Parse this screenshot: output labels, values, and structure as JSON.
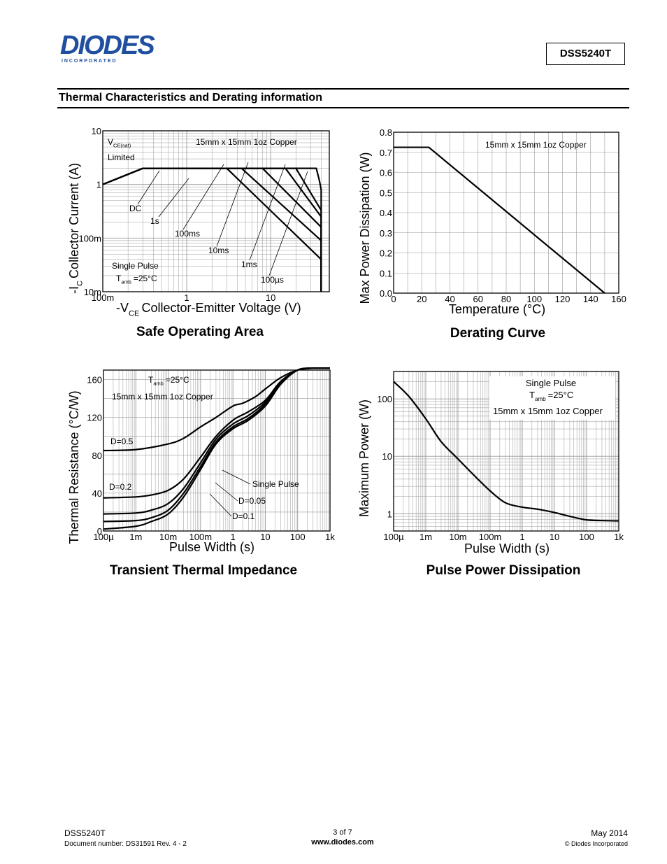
{
  "header": {
    "logo_text": "DIODES",
    "logo_sub": "I N C O R P O R A T E D",
    "part_number": "DSS5240T",
    "section_title": "Thermal Characteristics and Derating information"
  },
  "footer": {
    "part": "DSS5240T",
    "doc_number": "Document number: DS31591 Rev. 4 - 2",
    "page": "3 of 7",
    "website": "www.diodes.com",
    "date": "May 2014",
    "copyright": "© Diodes Incorporated"
  },
  "chart_data": [
    {
      "type": "line",
      "title": "Safe Operating Area",
      "xlabel_main": "-V",
      "xlabel_sub": "CE",
      "xlabel_rest": "Collector-Emitter Voltage (V)",
      "ylabel_main": "-I",
      "ylabel_sub": "C",
      "ylabel_rest": "Collector Current (A)",
      "x_scale": "log",
      "y_scale": "log",
      "xlim": [
        0.1,
        50
      ],
      "ylim": [
        0.01,
        10
      ],
      "x_ticks": [
        "100m",
        "1",
        "10"
      ],
      "y_ticks": [
        "10m",
        "100m",
        "1",
        "10"
      ],
      "annotations": {
        "vce_main": "V",
        "vce_sub": "CE(sat)",
        "limited": "Limited",
        "copper": "15mm x 15mm 1oz Copper",
        "single_pulse": "Single Pulse",
        "tamb_main": "T",
        "tamb_sub": "amb",
        "tamb_rest": "=25°C"
      },
      "series": [
        {
          "name": "DC",
          "x": [
            0.1,
            0.3,
            3,
            40,
            40
          ],
          "y": [
            1,
            2,
            2,
            0.04,
            0.01
          ]
        },
        {
          "name": "1s",
          "x": [
            0.1,
            0.3,
            4.5,
            40,
            40
          ],
          "y": [
            1,
            2,
            2,
            0.09,
            0.01
          ]
        },
        {
          "name": "100ms",
          "x": [
            0.1,
            0.3,
            8,
            40,
            40
          ],
          "y": [
            1,
            2,
            2,
            0.16,
            0.01
          ]
        },
        {
          "name": "10ms",
          "x": [
            0.1,
            0.3,
            15,
            40,
            40
          ],
          "y": [
            1,
            2,
            2,
            0.25,
            0.01
          ]
        },
        {
          "name": "1ms",
          "x": [
            0.1,
            0.3,
            20,
            40,
            40
          ],
          "y": [
            1,
            2,
            2,
            0.33,
            0.01
          ]
        },
        {
          "name": "100µs",
          "x": [
            0.1,
            0.3,
            35,
            38,
            40,
            40
          ],
          "y": [
            1,
            2,
            2,
            1.2,
            0.8,
            0.01
          ]
        }
      ]
    },
    {
      "type": "line",
      "title": "Derating Curve",
      "xlabel": "Temperature (°C)",
      "ylabel": "Max Power Dissipation (W)",
      "xlim": [
        0,
        160
      ],
      "ylim": [
        0,
        0.8
      ],
      "x_ticks": [
        "0",
        "20",
        "40",
        "60",
        "80",
        "100",
        "120",
        "140",
        "160"
      ],
      "y_ticks": [
        "0.0",
        "0.1",
        "0.2",
        "0.3",
        "0.4",
        "0.5",
        "0.6",
        "0.7",
        "0.8"
      ],
      "annotation": "15mm x 15mm 1oz Copper",
      "series": [
        {
          "x": [
            0,
            25,
            150
          ],
          "y": [
            0.725,
            0.725,
            0
          ]
        }
      ]
    },
    {
      "type": "line",
      "title": "Transient Thermal Impedance",
      "xlabel": "Pulse Width (s)",
      "ylabel": "Thermal Resistance (°C/W)",
      "x_scale": "log",
      "xlim": [
        0.0001,
        1000
      ],
      "ylim": [
        0,
        170
      ],
      "x_ticks": [
        "100µ",
        "1m",
        "10m",
        "100m",
        "1",
        "10",
        "100",
        "1k"
      ],
      "y_ticks": [
        "0",
        "40",
        "80",
        "120",
        "160"
      ],
      "annotations": {
        "tamb_main": "T",
        "tamb_sub": "amb",
        "tamb_rest": "=25°C",
        "copper": "15mm x 15mm 1oz Copper"
      },
      "series": [
        {
          "name": "D=0.5",
          "x": [
            0.0001,
            0.001,
            0.01,
            0.03,
            0.1,
            0.3,
            1,
            2,
            5,
            10,
            30,
            100,
            300,
            1000
          ],
          "y": [
            85,
            86,
            92,
            98,
            110,
            120,
            132,
            135,
            142,
            150,
            162,
            170,
            172,
            172
          ]
        },
        {
          "name": "D=0.2",
          "x": [
            0.0001,
            0.001,
            0.003,
            0.01,
            0.03,
            0.1,
            0.3,
            1,
            3,
            10,
            30,
            100,
            300,
            1000
          ],
          "y": [
            35,
            36,
            38,
            43,
            55,
            78,
            100,
            117,
            126,
            138,
            158,
            170,
            172,
            172
          ]
        },
        {
          "name": "D=0.1",
          "x": [
            0.0001,
            0.001,
            0.003,
            0.01,
            0.03,
            0.1,
            0.3,
            1,
            3,
            10,
            30,
            100,
            300,
            1000
          ],
          "y": [
            18,
            19,
            22,
            29,
            45,
            72,
            97,
            113,
            122,
            136,
            157,
            170,
            172,
            172
          ]
        },
        {
          "name": "D=0.05",
          "x": [
            0.0001,
            0.001,
            0.003,
            0.01,
            0.03,
            0.1,
            0.3,
            1,
            3,
            10,
            30,
            100,
            300,
            1000
          ],
          "y": [
            10,
            11,
            14,
            22,
            40,
            68,
            94,
            110,
            119,
            134,
            156,
            170,
            172,
            172
          ]
        },
        {
          "name": "Single Pulse",
          "x": [
            0.0001,
            0.001,
            0.003,
            0.01,
            0.03,
            0.1,
            0.3,
            1,
            3,
            10,
            30,
            100,
            300,
            1000
          ],
          "y": [
            2,
            5,
            10,
            18,
            36,
            65,
            92,
            108,
            117,
            132,
            155,
            170,
            172,
            172
          ]
        }
      ]
    },
    {
      "type": "line",
      "title": "Pulse Power Dissipation",
      "xlabel": "Pulse Width (s)",
      "ylabel": "Maximum Power (W)",
      "x_scale": "log",
      "y_scale": "log",
      "xlim": [
        0.0001,
        1000
      ],
      "ylim": [
        0.5,
        300
      ],
      "x_ticks": [
        "100µ",
        "1m",
        "10m",
        "100m",
        "1",
        "10",
        "100",
        "1k"
      ],
      "y_ticks": [
        "1",
        "10",
        "100"
      ],
      "annotations": {
        "single_pulse": "Single Pulse",
        "tamb_main": "T",
        "tamb_sub": "amb",
        "tamb_rest": "=25°C",
        "copper": "15mm x 15mm 1oz Copper"
      },
      "series": [
        {
          "x": [
            0.0001,
            0.0003,
            0.001,
            0.003,
            0.01,
            0.03,
            0.1,
            0.3,
            1,
            3,
            10,
            30,
            100,
            300,
            1000
          ],
          "y": [
            200,
            110,
            45,
            18,
            9,
            4.8,
            2.5,
            1.55,
            1.3,
            1.2,
            1.05,
            0.9,
            0.78,
            0.76,
            0.75
          ]
        }
      ]
    }
  ]
}
